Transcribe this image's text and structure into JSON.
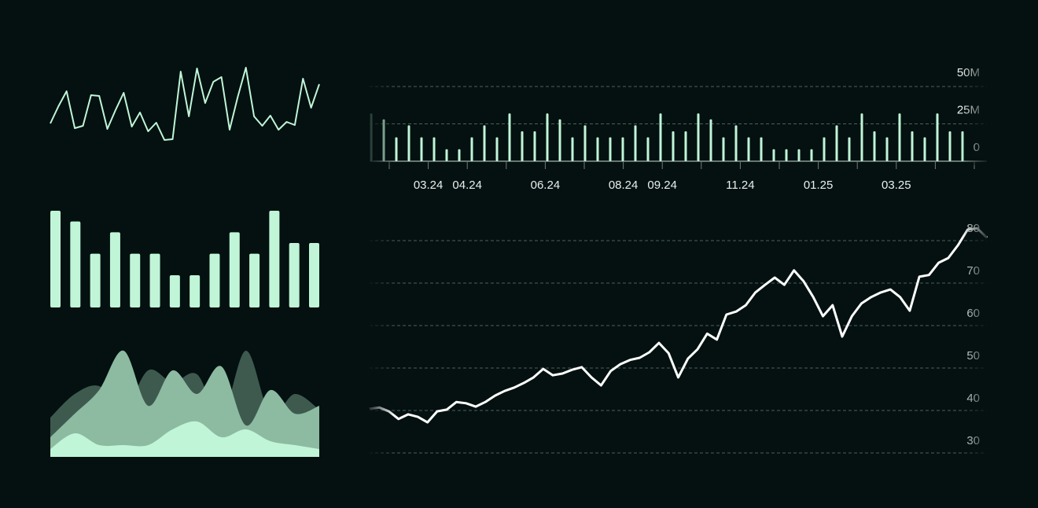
{
  "chart_data": [
    {
      "type": "line",
      "color": "#c0f5d8",
      "ylim": [
        0,
        110
      ],
      "values": [
        33,
        55,
        74,
        27,
        30,
        69,
        68,
        26,
        50,
        72,
        29,
        47,
        23,
        34,
        12,
        13,
        99,
        42,
        103,
        59,
        86,
        92,
        25,
        67,
        104,
        42,
        30,
        43,
        25,
        35,
        31,
        90,
        53,
        83
      ]
    },
    {
      "type": "bar",
      "color": "#c0f5d8",
      "ylim": [
        0,
        9
      ],
      "values": [
        9,
        8,
        5,
        7,
        5,
        5,
        3,
        3,
        5,
        7,
        5,
        9,
        6,
        6
      ]
    },
    {
      "type": "area",
      "ylim": [
        0,
        150
      ],
      "series": [
        {
          "color": "#3e5a4f",
          "values": [
            50,
            80,
            90,
            60,
            110,
            95,
            105,
            50,
            135,
            55,
            80,
            60
          ]
        },
        {
          "color": "#8cbba2",
          "values": [
            25,
            55,
            85,
            135,
            65,
            110,
            80,
            115,
            40,
            85,
            55,
            65
          ]
        },
        {
          "color": "#c0f5d8",
          "values": [
            10,
            30,
            15,
            15,
            15,
            35,
            45,
            25,
            35,
            20,
            15,
            10
          ]
        }
      ]
    },
    {
      "type": "bar",
      "color": "#c0f5d8",
      "ylim": [
        0,
        50000000
      ],
      "yticks": [
        0,
        {
          "value": 25000000,
          "label": "25M"
        },
        {
          "value": 50000000,
          "label": "50M"
        }
      ],
      "xticks": [
        null,
        "03.24",
        "04.24",
        null,
        "06.24",
        null,
        "08.24",
        "09.24",
        null,
        "11.24",
        null,
        "01.25",
        null,
        "03.25",
        null,
        null
      ],
      "values": [
        32000000,
        28000000,
        16000000,
        24000000,
        16000000,
        16000000,
        8000000,
        8000000,
        16000000,
        24000000,
        16000000,
        32000000,
        20000000,
        20000000,
        32000000,
        28000000,
        16000000,
        24000000,
        16000000,
        16000000,
        16000000,
        24000000,
        16000000,
        32000000,
        20000000,
        20000000,
        32000000,
        28000000,
        16000000,
        24000000,
        16000000,
        16000000,
        8000000,
        8000000,
        8000000,
        8000000,
        16000000,
        24000000,
        16000000,
        32000000,
        20000000,
        16000000,
        32000000,
        20000000,
        16000000,
        32000000,
        20000000,
        20000000
      ]
    },
    {
      "type": "line",
      "color": "#ffffff",
      "ylim": [
        30,
        80
      ],
      "yticks": [
        30,
        40,
        50,
        60,
        70,
        80
      ],
      "values": [
        40.4,
        40.7,
        39.8,
        38,
        39.1,
        38.5,
        37.2,
        39.8,
        40.2,
        42,
        41.7,
        40.9,
        42,
        43.5,
        44.6,
        45.4,
        46.5,
        47.8,
        49.8,
        48.3,
        48.7,
        49.6,
        50.2,
        47.8,
        45.9,
        49.3,
        50.9,
        51.9,
        52.4,
        53.7,
        55.9,
        53.5,
        47.8,
        52.2,
        54.4,
        58.1,
        56.7,
        62.6,
        63.3,
        64.8,
        67.8,
        69.6,
        71.3,
        69.6,
        73,
        70.4,
        66.7,
        62.2,
        64.8,
        57.4,
        62.2,
        65.2,
        66.7,
        67.8,
        68.5,
        66.7,
        63.5,
        71.5,
        71.9,
        74.8,
        75.9,
        78.9,
        82.6,
        82.9,
        80.7
      ]
    }
  ]
}
